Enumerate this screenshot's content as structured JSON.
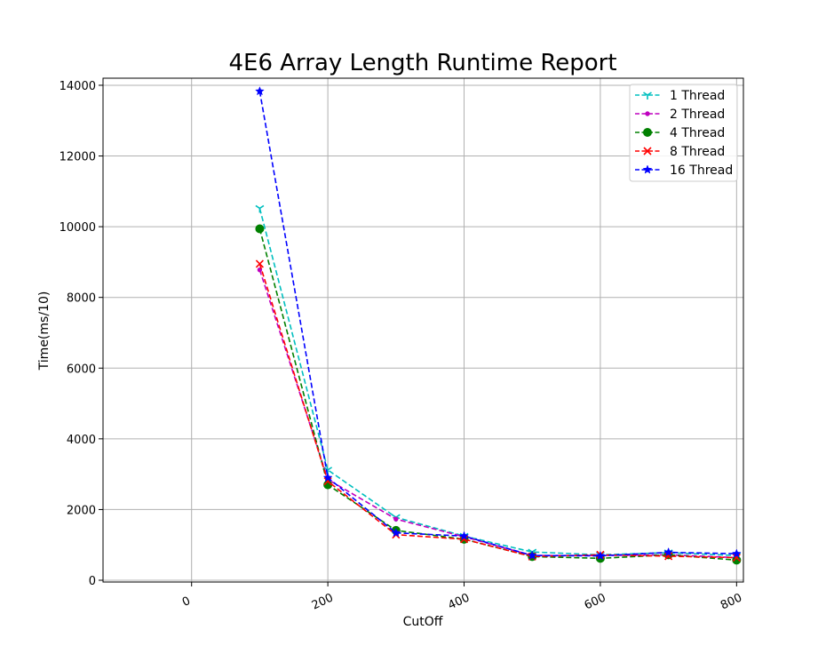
{
  "chart_data": {
    "type": "line",
    "title": "4E6 Array Length Runtime Report",
    "xlabel": "CutOff",
    "ylabel": "Time(ms/10)",
    "xlim": [
      -130,
      810
    ],
    "ylim": [
      -50,
      14200
    ],
    "xticks": [
      0,
      200,
      400,
      600,
      800
    ],
    "yticks": [
      0,
      2000,
      4000,
      6000,
      8000,
      10000,
      12000,
      14000
    ],
    "grid": true,
    "legend_position": "top-right",
    "x": [
      100,
      200,
      300,
      400,
      500,
      600,
      700,
      800
    ],
    "series": [
      {
        "name": "1 Thread",
        "color": "#00bfbf",
        "marker": "tri-down",
        "values": [
          10520,
          3120,
          1780,
          1250,
          800,
          720,
          780,
          700
        ]
      },
      {
        "name": "2 Thread",
        "color": "#bf00bf",
        "marker": "point",
        "values": [
          8780,
          2850,
          1730,
          1230,
          700,
          700,
          720,
          640
        ]
      },
      {
        "name": "4 Thread",
        "color": "#008000",
        "marker": "circle",
        "values": [
          9940,
          2700,
          1410,
          1160,
          670,
          620,
          720,
          570
        ]
      },
      {
        "name": "8 Thread",
        "color": "#ff0000",
        "marker": "x",
        "values": [
          8950,
          2800,
          1290,
          1160,
          670,
          720,
          680,
          640
        ]
      },
      {
        "name": "16 Thread",
        "color": "#0000ff",
        "marker": "star",
        "values": [
          13830,
          2900,
          1340,
          1250,
          700,
          690,
          790,
          750
        ]
      }
    ]
  }
}
